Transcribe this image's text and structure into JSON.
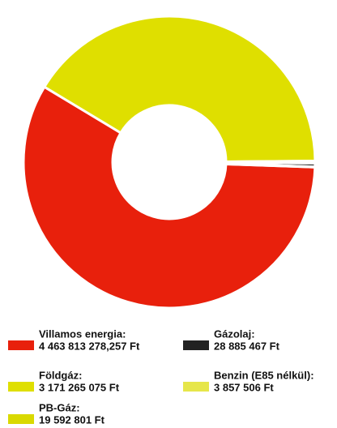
{
  "chart_data": {
    "type": "donut",
    "series": [
      {
        "name": "Villamos energia:",
        "color": "#e8200c",
        "values": [
          4463813278.257
        ],
        "value_labels": [
          "4 463 813 278,257 Ft"
        ]
      },
      {
        "name": "Földgáz:",
        "color": "#dfdf00",
        "values": [
          3171265075
        ],
        "value_labels": [
          "3 171 265 075 Ft"
        ]
      },
      {
        "name": "PB-Gáz:",
        "color": "#d9d900",
        "values": [
          19592801
        ],
        "value_labels": [
          "19 592 801 Ft"
        ]
      },
      {
        "name": "Gázolaj:",
        "color": "#222222",
        "values": [
          28885467
        ],
        "value_labels": [
          "28 885 467 Ft"
        ]
      },
      {
        "name": "Benzin (E85 nélkül):",
        "color": "#e6e64a",
        "values": [
          3857506
        ],
        "value_labels": [
          "3 857 506 Ft"
        ]
      }
    ]
  }
}
